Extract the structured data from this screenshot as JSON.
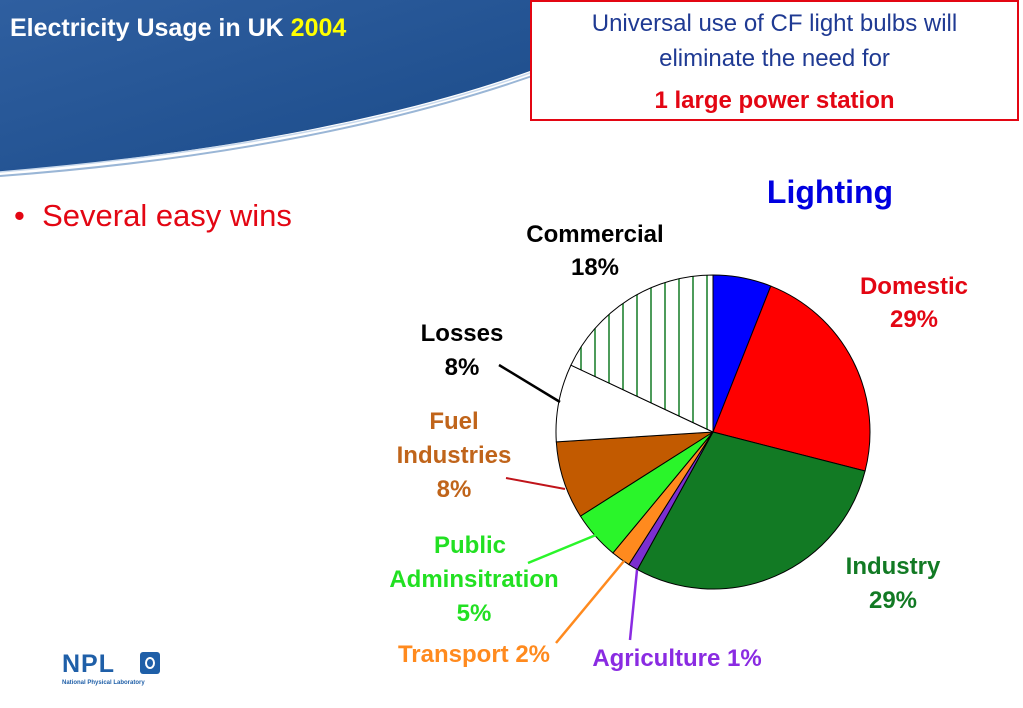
{
  "header": {
    "title": "Electricity Usage in UK",
    "year": "2004"
  },
  "callout": {
    "line1": "Universal use of CF light bulbs will",
    "line2": "eliminate the need for",
    "line3": "1 large power station"
  },
  "bullet": {
    "marker": "•",
    "text": "Several easy wins"
  },
  "logo": {
    "name": "NPL",
    "subtitle": "National Physical Laboratory"
  },
  "chart_data": {
    "type": "pie",
    "title": "",
    "slices": [
      {
        "name": "Lighting",
        "label": "Lighting",
        "value": 6,
        "color": "#0000ff"
      },
      {
        "name": "Domestic",
        "label": "Domestic 29%",
        "value": 23,
        "color": "#ff0000"
      },
      {
        "name": "Industry",
        "label": "Industry 29%",
        "value": 29,
        "color": "#127a24"
      },
      {
        "name": "Agriculture",
        "label": "Agriculture 1%",
        "value": 1,
        "color": "#7b2fd0"
      },
      {
        "name": "Transport",
        "label": "Transport 2%",
        "value": 2,
        "color": "#ff8a1e"
      },
      {
        "name": "Public Adminsitration",
        "label": "Public Adminsitration 5%",
        "value": 5,
        "color": "#2af52a"
      },
      {
        "name": "Fuel Industries",
        "label": "Fuel Industries 8%",
        "value": 8,
        "color": "#c25a00"
      },
      {
        "name": "Losses",
        "label": "Losses 8%",
        "value": 8,
        "color": "#ffffff"
      },
      {
        "name": "Commercial",
        "label": "Commercial 18%",
        "value": 18,
        "color": "#ffffff",
        "pattern": "green-vertical-stripes"
      }
    ],
    "start_angle": "12 o'clock, clockwise",
    "legend": "none (labels on chart)",
    "labels": {
      "lighting": "Lighting",
      "commercial": [
        "Commercial",
        "18%"
      ],
      "domestic": [
        "Domestic",
        "29%"
      ],
      "losses": [
        "Losses",
        "8%"
      ],
      "fuel": [
        "Fuel",
        "Industries",
        "8%"
      ],
      "public": [
        "Public",
        "Adminsitration",
        "5%"
      ],
      "industry": [
        "Industry",
        "29%"
      ],
      "transport": "Transport 2%",
      "agriculture": "Agriculture 1%"
    },
    "label_colors": {
      "lighting": "#0000e0",
      "commercial": "#000000",
      "domestic": "#e30613",
      "losses": "#000000",
      "fuel": "#c0641a",
      "public": "#22e022",
      "industry": "#127a24",
      "transport": "#ff8a1e",
      "agriculture": "#8a2be2"
    }
  }
}
